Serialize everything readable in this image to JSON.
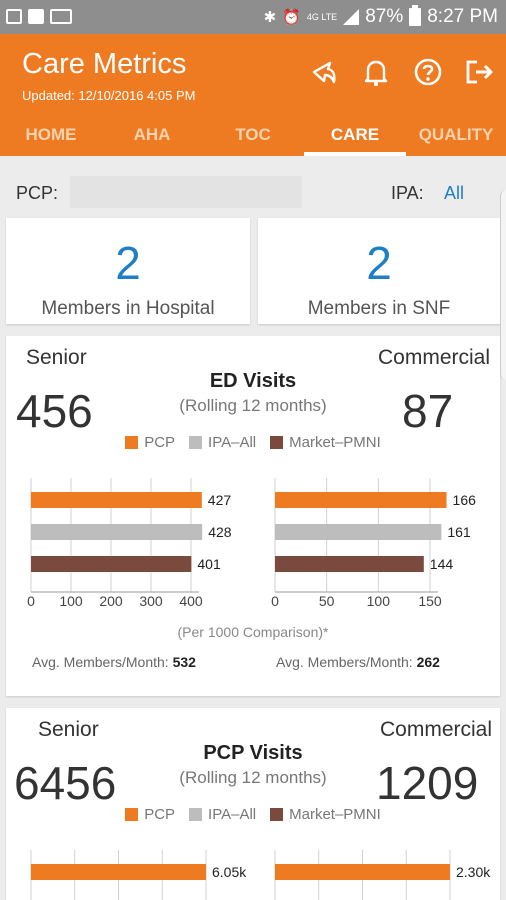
{
  "status_bar": {
    "battery": "87%",
    "time": "8:27 PM",
    "network": "4G LTE"
  },
  "header": {
    "title": "Care Metrics",
    "updated": "Updated: 12/10/2016 4:05 PM",
    "icons": [
      "share-icon",
      "bell-icon",
      "help-icon",
      "logout-icon"
    ]
  },
  "tabs": [
    {
      "label": "HOME",
      "active": false
    },
    {
      "label": "AHA",
      "active": false
    },
    {
      "label": "TOC",
      "active": false
    },
    {
      "label": "CARE",
      "active": true
    },
    {
      "label": "QUALITY",
      "active": false
    }
  ],
  "filter": {
    "pcp_label": "PCP:",
    "pcp_value": "",
    "ipa_label": "IPA:",
    "ipa_value": "All"
  },
  "summary": [
    {
      "value": "2",
      "label": "Members in Hospital"
    },
    {
      "value": "2",
      "label": "Members in SNF"
    }
  ],
  "legend": [
    {
      "label": "PCP",
      "color": "#ee7b22"
    },
    {
      "label": "IPA–All",
      "color": "#bdbdbd"
    },
    {
      "label": "Market–PMNI",
      "color": "#7a4a3e"
    }
  ],
  "metrics": [
    {
      "title": "ED Visits",
      "subtitle": "(Rolling 12 months)",
      "left_label": "Senior",
      "left_value": "456",
      "right_label": "Commercial",
      "right_value": "87",
      "per_note": "(Per 1000 Comparison)*",
      "left_avg_label": "Avg. Members/Month:",
      "left_avg_value": "532",
      "right_avg_label": "Avg. Members/Month:",
      "right_avg_value": "262"
    },
    {
      "title": "PCP Visits",
      "subtitle": "(Rolling 12 months)",
      "left_label": "Senior",
      "left_value": "6456",
      "right_label": "Commercial",
      "right_value": "1209"
    }
  ],
  "chart_data": [
    {
      "type": "bar",
      "orientation": "horizontal",
      "title": "",
      "categories": [
        "PCP",
        "IPA–All",
        "Market–PMNI"
      ],
      "values": [
        427,
        428,
        401
      ],
      "value_labels": [
        "427",
        "428",
        "401"
      ],
      "colors": [
        "#ee7b22",
        "#bdbdbd",
        "#7a4a3e"
      ],
      "xlim": [
        0,
        400
      ],
      "xticks": [
        0,
        100,
        200,
        300,
        400
      ],
      "grid": true
    },
    {
      "type": "bar",
      "orientation": "horizontal",
      "title": "",
      "categories": [
        "PCP",
        "IPA–All",
        "Market–PMNI"
      ],
      "values": [
        166,
        161,
        144
      ],
      "value_labels": [
        "166",
        "161",
        "144"
      ],
      "colors": [
        "#ee7b22",
        "#bdbdbd",
        "#7a4a3e"
      ],
      "xlim": [
        0,
        150
      ],
      "xticks": [
        0,
        50,
        100,
        150
      ],
      "grid": true
    },
    {
      "type": "bar",
      "orientation": "horizontal",
      "title": "",
      "categories": [
        "PCP"
      ],
      "values": [
        6050
      ],
      "value_labels": [
        "6.05k"
      ],
      "colors": [
        "#ee7b22"
      ],
      "grid": true
    },
    {
      "type": "bar",
      "orientation": "horizontal",
      "title": "",
      "categories": [
        "PCP"
      ],
      "values": [
        2300
      ],
      "value_labels": [
        "2.30k"
      ],
      "colors": [
        "#ee7b22"
      ],
      "grid": true
    }
  ]
}
